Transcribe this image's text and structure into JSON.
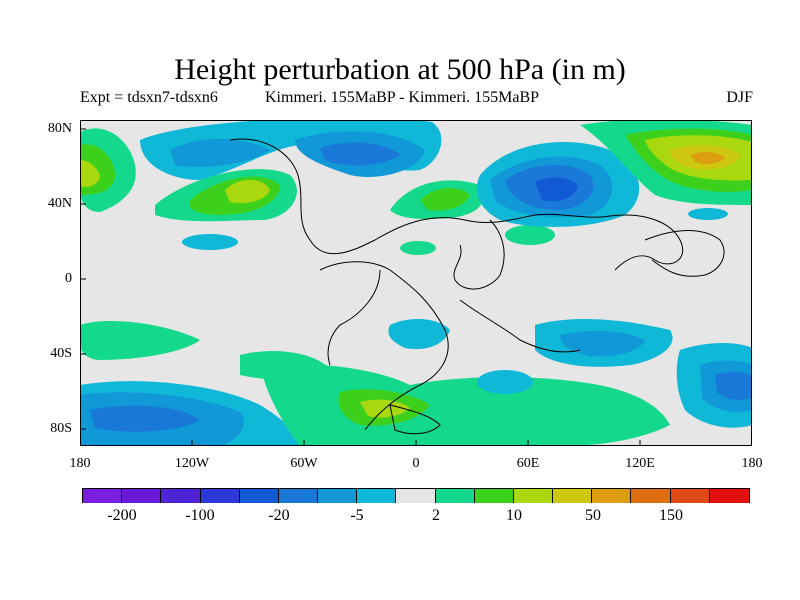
{
  "title": "Height perturbation at 500 hPa (in m)",
  "subtitle_left": "Expt = tdsxn7-tdsxn6",
  "subtitle_center": "Kimmeri. 155MaBP - Kimmeri. 155MaBP",
  "subtitle_right": "DJF",
  "lat_labels": [
    "80N",
    "40N",
    "0",
    "40S",
    "80S"
  ],
  "lon_labels": [
    "180",
    "120W",
    "60W",
    "0",
    "60E",
    "120E",
    "180"
  ],
  "colorbar": {
    "labels": [
      "-200",
      "-100",
      "-20",
      "-5",
      "2",
      "10",
      "50",
      "150"
    ],
    "colors": [
      "#7a1fe0",
      "#6a19d9",
      "#4e23d6",
      "#2c39d8",
      "#1259d6",
      "#1a78d8",
      "#1198d6",
      "#10b8d8",
      "#e5e5e5",
      "#14d98c",
      "#3cd01c",
      "#a9d80e",
      "#cfc810",
      "#dc9e0e",
      "#de6e10",
      "#e04a16",
      "#e11112"
    ]
  },
  "colors": {
    "background": "#e6e6e6",
    "neg_light": "#10b8d8",
    "neg_mid": "#1198d6",
    "neg_dark": "#1a78d8",
    "neg_deep": "#1259d6",
    "pos_light": "#14d98c",
    "pos_mid": "#3cd01c",
    "pos_strong": "#a9d80e",
    "pos_yellow": "#cfc810",
    "pos_orange": "#dc9e0e"
  }
}
